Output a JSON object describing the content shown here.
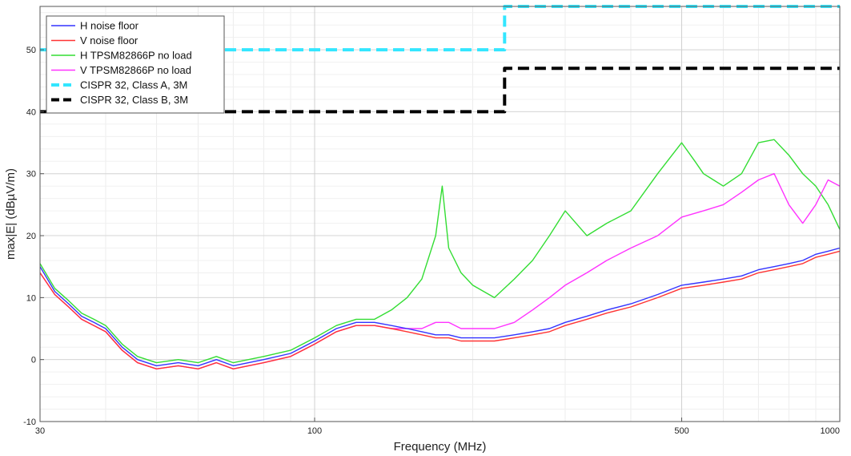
{
  "chart_data": {
    "type": "line",
    "title": "",
    "xlabel": "Frequency (MHz)",
    "ylabel": "max|E| (dBµV/m)",
    "xscale": "log",
    "xlim": [
      30,
      1000
    ],
    "ylim": [
      -10,
      57
    ],
    "x_ticks": [
      30,
      100,
      500,
      1000
    ],
    "y_ticks": [
      -10,
      0,
      10,
      20,
      30,
      40,
      50
    ],
    "grid": true,
    "legend_position": "top-left",
    "series": [
      {
        "name": "H noise floor",
        "color": "#3333ff",
        "style": "solid",
        "x": [
          30,
          32,
          34,
          36,
          38,
          40,
          43,
          46,
          50,
          55,
          60,
          65,
          70,
          80,
          90,
          100,
          110,
          120,
          130,
          140,
          150,
          160,
          170,
          180,
          190,
          200,
          220,
          240,
          260,
          280,
          300,
          330,
          360,
          400,
          450,
          500,
          550,
          600,
          650,
          700,
          750,
          800,
          850,
          900,
          950,
          1000
        ],
        "y": [
          15,
          11,
          9,
          7,
          6,
          5,
          2,
          0,
          -1,
          -0.5,
          -1,
          0,
          -1,
          0,
          1,
          3,
          5,
          6,
          6,
          5.5,
          5,
          4.5,
          4,
          4,
          3.5,
          3.5,
          3.5,
          4,
          4.5,
          5,
          6,
          7,
          8,
          9,
          10.5,
          12,
          12.5,
          13,
          13.5,
          14.5,
          15,
          15.5,
          16,
          17,
          17.5,
          18
        ]
      },
      {
        "name": "V noise floor",
        "color": "#ff3333",
        "style": "solid",
        "x": [
          30,
          32,
          34,
          36,
          38,
          40,
          43,
          46,
          50,
          55,
          60,
          65,
          70,
          80,
          90,
          100,
          110,
          120,
          130,
          140,
          150,
          160,
          170,
          180,
          190,
          200,
          220,
          240,
          260,
          280,
          300,
          330,
          360,
          400,
          450,
          500,
          550,
          600,
          650,
          700,
          750,
          800,
          850,
          900,
          950,
          1000
        ],
        "y": [
          14,
          10.5,
          8.5,
          6.5,
          5.5,
          4.5,
          1.5,
          -0.5,
          -1.5,
          -1,
          -1.5,
          -0.5,
          -1.5,
          -0.5,
          0.5,
          2.5,
          4.5,
          5.5,
          5.5,
          5,
          4.5,
          4,
          3.5,
          3.5,
          3,
          3,
          3,
          3.5,
          4,
          4.5,
          5.5,
          6.5,
          7.5,
          8.5,
          10,
          11.5,
          12,
          12.5,
          13,
          14,
          14.5,
          15,
          15.5,
          16.5,
          17,
          17.5
        ]
      },
      {
        "name": "H TPSM82866P no load",
        "color": "#33dd33",
        "style": "solid",
        "x": [
          30,
          32,
          34,
          36,
          38,
          40,
          43,
          46,
          50,
          55,
          60,
          65,
          70,
          80,
          90,
          100,
          110,
          120,
          130,
          140,
          150,
          160,
          170,
          175,
          180,
          190,
          200,
          220,
          240,
          260,
          280,
          300,
          330,
          360,
          400,
          450,
          500,
          530,
          550,
          600,
          650,
          700,
          750,
          800,
          850,
          900,
          950,
          1000
        ],
        "y": [
          15.5,
          11.5,
          9.5,
          7.5,
          6.5,
          5.5,
          2.5,
          0.5,
          -0.5,
          0,
          -0.5,
          0.5,
          -0.5,
          0.5,
          1.5,
          3.5,
          5.5,
          6.5,
          6.5,
          8,
          10,
          13,
          20,
          28,
          18,
          14,
          12,
          10,
          13,
          16,
          20,
          24,
          20,
          22,
          24,
          30,
          35,
          32,
          30,
          28,
          30,
          35,
          35.5,
          33,
          30,
          28,
          25,
          21
        ]
      },
      {
        "name": "V TPSM82866P no load",
        "color": "#ff33ff",
        "style": "solid",
        "x": [
          30,
          32,
          34,
          36,
          38,
          40,
          43,
          46,
          50,
          55,
          60,
          65,
          70,
          80,
          90,
          100,
          110,
          120,
          130,
          140,
          150,
          160,
          170,
          180,
          190,
          200,
          220,
          240,
          260,
          280,
          300,
          330,
          360,
          400,
          450,
          500,
          550,
          600,
          650,
          700,
          750,
          800,
          850,
          900,
          950,
          1000
        ],
        "y": [
          14,
          10.5,
          8.5,
          6.5,
          5.5,
          4.5,
          1.5,
          -0.5,
          -1.5,
          -1,
          -1.5,
          -0.5,
          -1.5,
          -0.5,
          0.5,
          2.5,
          4.5,
          5.5,
          5.5,
          5,
          5,
          5,
          6,
          6,
          5,
          5,
          5,
          6,
          8,
          10,
          12,
          14,
          16,
          18,
          20,
          23,
          24,
          25,
          27,
          29,
          30,
          25,
          22,
          25,
          29,
          28
        ]
      },
      {
        "name": "CISPR 32, Class A, 3M",
        "color": "#33e6ff",
        "style": "dashed",
        "x": [
          30,
          230,
          230,
          1000
        ],
        "y": [
          50,
          50,
          57,
          57
        ]
      },
      {
        "name": "CISPR 32, Class B, 3M",
        "color": "#000000",
        "style": "dashed",
        "x": [
          30,
          230,
          230,
          1000
        ],
        "y": [
          40,
          40,
          47,
          47
        ]
      }
    ]
  }
}
